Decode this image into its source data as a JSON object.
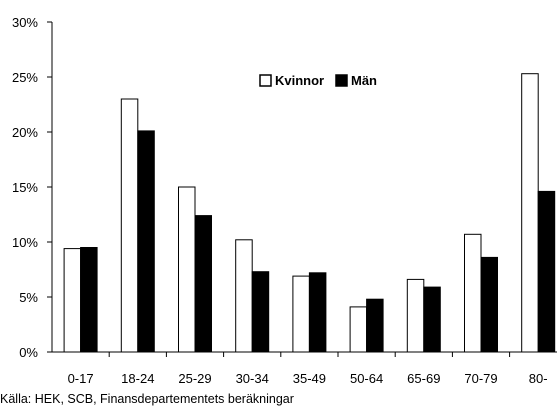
{
  "chart_data": {
    "type": "bar",
    "categories": [
      "0-17",
      "18-24",
      "25-29",
      "30-34",
      "35-49",
      "50-64",
      "65-69",
      "70-79",
      "80-"
    ],
    "series": [
      {
        "name": "Kvinnor",
        "values": [
          9.4,
          23.0,
          15.0,
          10.2,
          6.9,
          4.1,
          6.6,
          10.7,
          25.3
        ],
        "fill": "#ffffff",
        "stroke": "#000000"
      },
      {
        "name": "Män",
        "values": [
          9.5,
          20.1,
          12.4,
          7.3,
          7.2,
          4.8,
          5.9,
          8.6,
          14.6
        ],
        "fill": "#000000",
        "stroke": "#000000"
      }
    ],
    "yticks": [
      "0%",
      "5%",
      "10%",
      "15%",
      "20%",
      "25%",
      "30%"
    ],
    "ylim": [
      0,
      30
    ],
    "title": "",
    "xlabel": "",
    "ylabel": "",
    "grid": false,
    "legend_position": "top-right"
  },
  "source_note": "Källa: HEK, SCB, Finansdepartementets beräkningar"
}
